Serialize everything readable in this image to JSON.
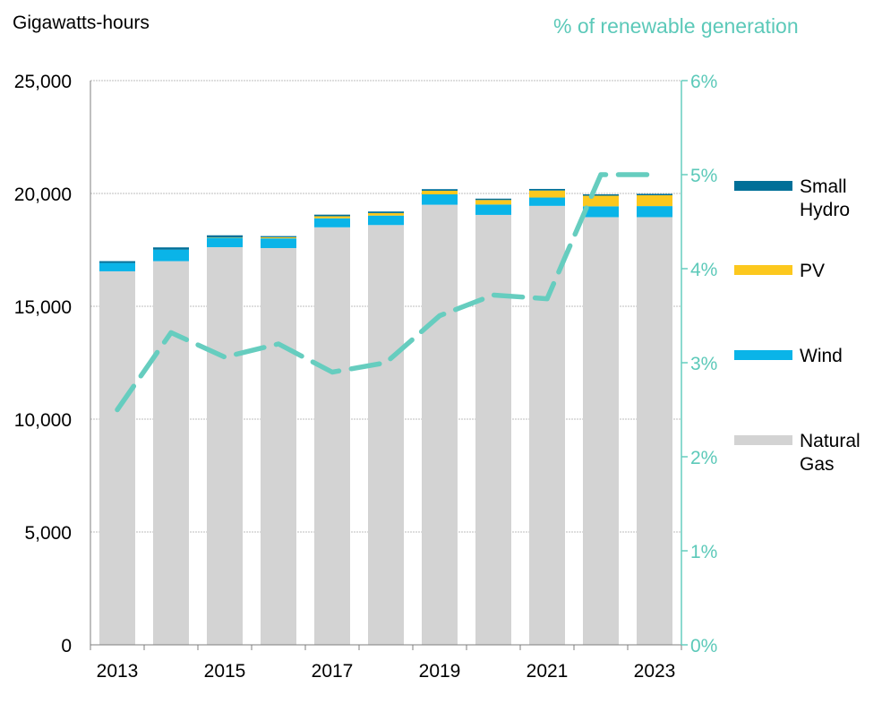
{
  "chart_data": {
    "type": "bar",
    "stacked": true,
    "ylabel": "Gigawatts-hours",
    "y2label": "% of renewable generation",
    "categories": [
      "2013",
      "2014",
      "2015",
      "2016",
      "2017",
      "2018",
      "2019",
      "2020",
      "2021",
      "2022",
      "2023"
    ],
    "x_tick_labels": [
      "2013",
      "2015",
      "2017",
      "2019",
      "2021",
      "2023"
    ],
    "ylim": [
      0,
      25000
    ],
    "y_ticks": [
      "0",
      "5,000",
      "10,000",
      "15,000",
      "20,000",
      "25,000"
    ],
    "y2lim": [
      0,
      6
    ],
    "y2_ticks": [
      "0%",
      "1%",
      "2%",
      "3%",
      "4%",
      "5%",
      "6%"
    ],
    "grid": true,
    "legend_position": "right",
    "series": [
      {
        "name": "Natural Gas",
        "color": "#d3d3d3",
        "values": [
          16550,
          17000,
          17620,
          17580,
          18500,
          18600,
          19500,
          19050,
          19450,
          18950,
          18950
        ]
      },
      {
        "name": "Wind",
        "color": "#0ab4e8",
        "values": [
          370,
          510,
          420,
          430,
          400,
          420,
          460,
          460,
          370,
          480,
          490
        ]
      },
      {
        "name": "PV",
        "color": "#fcc81e",
        "values": [
          0,
          0,
          15,
          50,
          90,
          110,
          160,
          200,
          310,
          470,
          480
        ]
      },
      {
        "name": "Small Hydro",
        "color": "#006f98",
        "values": [
          80,
          100,
          90,
          50,
          70,
          70,
          70,
          60,
          70,
          60,
          60
        ]
      }
    ],
    "line_series": {
      "name": "% of renewable generation",
      "axis": "right",
      "color": "#66cdbf",
      "dashed": true,
      "values": [
        2.5,
        3.32,
        3.06,
        3.2,
        2.9,
        3.0,
        3.5,
        3.72,
        3.68,
        5.0,
        5.0
      ]
    }
  },
  "legend": [
    {
      "label": "Small\nHydro",
      "color": "#006f98"
    },
    {
      "label": "PV",
      "color": "#fcc81e"
    },
    {
      "label": "Wind",
      "color": "#0ab4e8"
    },
    {
      "label": "Natural\nGas",
      "color": "#d3d3d3"
    }
  ]
}
